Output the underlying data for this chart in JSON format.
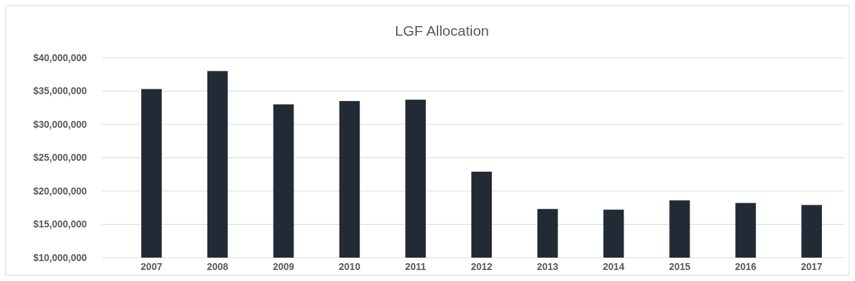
{
  "chart_data": {
    "type": "bar",
    "title": "LGF Allocation",
    "categories": [
      "2007",
      "2008",
      "2009",
      "2010",
      "2011",
      "2012",
      "2013",
      "2014",
      "2015",
      "2016",
      "2017"
    ],
    "values": [
      35300000,
      38000000,
      33000000,
      33500000,
      33700000,
      22900000,
      17300000,
      17200000,
      18600000,
      18200000,
      17900000
    ],
    "color": "#222a35",
    "ylim": [
      10000000,
      40000000
    ],
    "yticks": [
      {
        "value": 10000000,
        "label": "$10,000,000"
      },
      {
        "value": 15000000,
        "label": "$15,000,000"
      },
      {
        "value": 20000000,
        "label": "$20,000,000"
      },
      {
        "value": 25000000,
        "label": "$25,000,000"
      },
      {
        "value": 30000000,
        "label": "$30,000,000"
      },
      {
        "value": 35000000,
        "label": "$35,000,000"
      },
      {
        "value": 40000000,
        "label": "$40,000,000"
      }
    ],
    "grid": "y"
  }
}
